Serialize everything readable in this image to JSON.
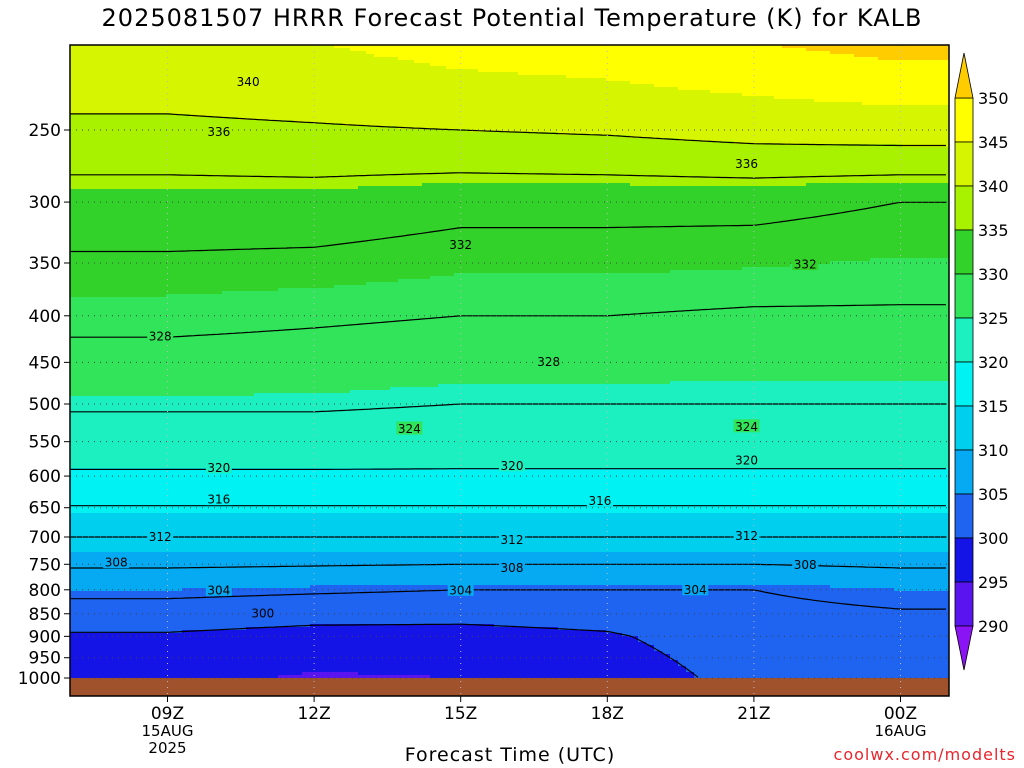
{
  "chart_data": {
    "type": "heatmap",
    "title": "2025081507 HRRR Forecast Potential Temperature (K) for KALB",
    "xlabel": "Forecast Time (UTC)",
    "ylabel": "",
    "x_ticks": [
      {
        "label": "09Z",
        "sub": [
          "15AUG",
          "2025"
        ]
      },
      {
        "label": "12Z",
        "sub": []
      },
      {
        "label": "15Z",
        "sub": []
      },
      {
        "label": "18Z",
        "sub": []
      },
      {
        "label": "21Z",
        "sub": []
      },
      {
        "label": "00Z",
        "sub": [
          "16AUG"
        ]
      }
    ],
    "y_ticks": [
      250,
      300,
      350,
      400,
      450,
      500,
      550,
      600,
      650,
      700,
      750,
      800,
      850,
      900,
      950,
      1000
    ],
    "ylim": [
      1000,
      200
    ],
    "pressure_levels": [
      200,
      300,
      400,
      500,
      600,
      700,
      800,
      900,
      950,
      1000
    ],
    "theta": [
      [
        344,
        345,
        347,
        348,
        350,
        352
      ],
      [
        334,
        334,
        333,
        333,
        333,
        332
      ],
      [
        329,
        328.5,
        328,
        328,
        327.5,
        327.5
      ],
      [
        324.5,
        324.5,
        324,
        324,
        324,
        324
      ],
      [
        319.5,
        319.5,
        319.5,
        319.5,
        319.5,
        319.5
      ],
      [
        312,
        312,
        312,
        312,
        312,
        312
      ],
      [
        305,
        304.5,
        304,
        304,
        304,
        305
      ],
      [
        299.5,
        298.5,
        298.5,
        299.5,
        302.5,
        302.5
      ],
      [
        297.5,
        296,
        296.5,
        298.5,
        302,
        302
      ],
      [
        296,
        294.5,
        295,
        297.5,
        301.5,
        301.5
      ]
    ],
    "contour_levels": [
      300,
      304,
      308,
      312,
      316,
      320,
      324,
      328,
      332,
      336,
      340
    ],
    "contour_labels": [
      {
        "value": 340,
        "x_tick": 0.55,
        "p": 221
      },
      {
        "value": 336,
        "x_tick": 0.35,
        "p": 251
      },
      {
        "value": 336,
        "x_tick": 3.95,
        "p": 272
      },
      {
        "value": 332,
        "x_tick": 2.0,
        "p": 334
      },
      {
        "value": 332,
        "x_tick": 4.35,
        "p": 351
      },
      {
        "value": 328,
        "x_tick": -0.05,
        "p": 421
      },
      {
        "value": 328,
        "x_tick": 2.6,
        "p": 449
      },
      {
        "value": 324,
        "x_tick": 1.65,
        "p": 532
      },
      {
        "value": 324,
        "x_tick": 3.95,
        "p": 529
      },
      {
        "value": 320,
        "x_tick": 0.35,
        "p": 587
      },
      {
        "value": 320,
        "x_tick": 2.35,
        "p": 584
      },
      {
        "value": 320,
        "x_tick": 3.95,
        "p": 576
      },
      {
        "value": 316,
        "x_tick": 0.35,
        "p": 636
      },
      {
        "value": 316,
        "x_tick": 2.95,
        "p": 638
      },
      {
        "value": 312,
        "x_tick": -0.05,
        "p": 699
      },
      {
        "value": 312,
        "x_tick": 2.35,
        "p": 704
      },
      {
        "value": 312,
        "x_tick": 3.95,
        "p": 697
      },
      {
        "value": 308,
        "x_tick": -0.35,
        "p": 746
      },
      {
        "value": 308,
        "x_tick": 2.35,
        "p": 756
      },
      {
        "value": 308,
        "x_tick": 4.35,
        "p": 750
      },
      {
        "value": 304,
        "x_tick": 0.35,
        "p": 800
      },
      {
        "value": 304,
        "x_tick": 2.0,
        "p": 800
      },
      {
        "value": 304,
        "x_tick": 3.6,
        "p": 799
      },
      {
        "value": 300,
        "x_tick": 0.65,
        "p": 848
      }
    ],
    "colorbar": {
      "labels": [
        350,
        345,
        340,
        335,
        330,
        325,
        320,
        315,
        310,
        305,
        300,
        295,
        290
      ],
      "bands": [
        {
          "from": 345,
          "to": 350,
          "color": "#ffff00"
        },
        {
          "from": 340,
          "to": 345,
          "color": "#d5f600"
        },
        {
          "from": 335,
          "to": 340,
          "color": "#a8f200"
        },
        {
          "from": 330,
          "to": 335,
          "color": "#32d22a"
        },
        {
          "from": 325,
          "to": 330,
          "color": "#31e45a"
        },
        {
          "from": 320,
          "to": 325,
          "color": "#1cf0c0"
        },
        {
          "from": 315,
          "to": 320,
          "color": "#00f2f2"
        },
        {
          "from": 310,
          "to": 315,
          "color": "#00cfee"
        },
        {
          "from": 305,
          "to": 310,
          "color": "#06aaf2"
        },
        {
          "from": 300,
          "to": 305,
          "color": "#1e64f0"
        },
        {
          "from": 295,
          "to": 300,
          "color": "#1414e6"
        },
        {
          "from": 290,
          "to": 295,
          "color": "#5a14f0"
        }
      ],
      "below_color": "#8a14f4",
      "above_color": "#ffcc00"
    },
    "ground_color": "#a0522d",
    "grid": "dotted"
  },
  "credit": "coolwx.com/modelts"
}
